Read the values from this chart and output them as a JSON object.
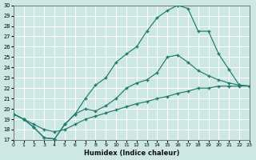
{
  "xlabel": "Humidex (Indice chaleur)",
  "bg_color": "#cde8e2",
  "grid_color": "#ffffff",
  "line_color": "#1f7a6e",
  "xlim": [
    0,
    23
  ],
  "ylim": [
    17,
    30
  ],
  "xticks": [
    0,
    1,
    2,
    3,
    4,
    5,
    6,
    7,
    8,
    9,
    10,
    11,
    12,
    13,
    14,
    15,
    16,
    17,
    18,
    19,
    20,
    21,
    22,
    23
  ],
  "yticks": [
    17,
    18,
    19,
    20,
    21,
    22,
    23,
    24,
    25,
    26,
    27,
    28,
    29,
    30
  ],
  "line1_x": [
    0,
    1,
    2,
    3,
    4,
    5,
    6,
    7,
    8,
    9,
    10,
    11,
    12,
    13,
    14,
    15,
    16,
    17,
    18,
    19,
    20,
    21,
    22,
    23
  ],
  "line1_y": [
    19.5,
    19.0,
    18.5,
    18.0,
    17.8,
    18.0,
    18.5,
    19.0,
    19.3,
    19.6,
    19.9,
    20.2,
    20.5,
    20.7,
    21.0,
    21.2,
    21.5,
    21.7,
    22.0,
    22.0,
    22.2,
    22.2,
    22.2,
    22.2
  ],
  "line2_x": [
    0,
    1,
    2,
    3,
    4,
    5,
    6,
    7,
    8,
    9,
    10,
    11,
    12,
    13,
    14,
    15,
    16,
    17,
    18,
    19,
    20,
    21,
    22,
    23
  ],
  "line2_y": [
    19.5,
    19.0,
    18.2,
    17.2,
    17.1,
    18.5,
    19.5,
    20.0,
    19.8,
    20.3,
    21.0,
    22.0,
    22.5,
    22.8,
    23.5,
    25.0,
    25.2,
    24.5,
    23.7,
    23.2,
    22.8,
    22.5,
    22.3,
    22.2
  ],
  "line3_x": [
    0,
    1,
    2,
    3,
    4,
    5,
    6,
    7,
    8,
    9,
    10,
    11,
    12,
    13,
    14,
    15,
    16,
    17,
    18,
    19,
    20,
    21,
    22,
    23
  ],
  "line3_y": [
    19.5,
    19.0,
    18.2,
    17.2,
    17.1,
    18.5,
    19.5,
    21.0,
    22.3,
    23.0,
    24.5,
    25.3,
    26.0,
    27.5,
    28.8,
    29.5,
    30.0,
    29.7,
    27.5,
    27.5,
    25.3,
    23.8,
    22.3,
    22.2
  ]
}
